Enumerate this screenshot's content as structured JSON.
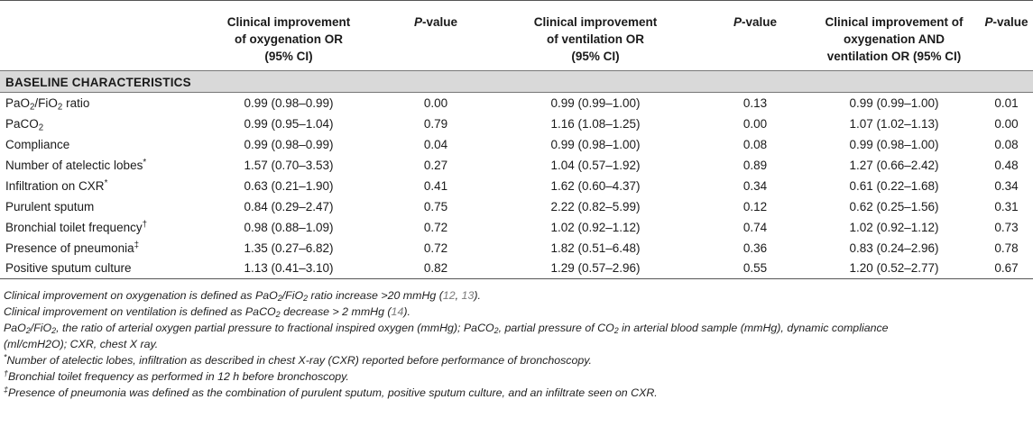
{
  "header": {
    "col1": "Clinical improvement of oxygenation OR (95% CI)",
    "col1_l1": "Clinical improvement",
    "col1_l2": "of oxygenation OR",
    "col1_l3": "(95% CI)",
    "pvalue_p": "P",
    "pvalue_rest": "-value",
    "col2_l1": "Clinical improvement",
    "col2_l2": "of ventilation OR",
    "col2_l3": "(95% CI)",
    "col3_l1": "Clinical improvement of",
    "col3_l2": "oxygenation AND",
    "col3_l3": "ventilation OR (95% CI)"
  },
  "section": "BASELINE CHARACTERISTICS",
  "rows": [
    {
      "label": "PaO2/FiO2 ratio",
      "or1": "0.99 (0.98–0.99)",
      "p1": "0.00",
      "or2": "0.99 (0.99–1.00)",
      "p2": "0.13",
      "or3": "0.99 (0.99–1.00)",
      "p3": "0.01"
    },
    {
      "label": "PaCO2",
      "or1": "0.99 (0.95–1.04)",
      "p1": "0.79",
      "or2": "1.16 (1.08–1.25)",
      "p2": "0.00",
      "or3": "1.07 (1.02–1.13)",
      "p3": "0.00"
    },
    {
      "label": "Compliance",
      "or1": "0.99 (0.98–0.99)",
      "p1": "0.04",
      "or2": "0.99 (0.98–1.00)",
      "p2": "0.08",
      "or3": "0.99 (0.98–1.00)",
      "p3": "0.08"
    },
    {
      "label": "Number of atelectic lobes*",
      "or1": "1.57 (0.70–3.53)",
      "p1": "0.27",
      "or2": "1.04 (0.57–1.92)",
      "p2": "0.89",
      "or3": "1.27 (0.66–2.42)",
      "p3": "0.48"
    },
    {
      "label": "Infiltration on CXR*",
      "or1": "0.63 (0.21–1.90)",
      "p1": "0.41",
      "or2": "1.62 (0.60–4.37)",
      "p2": "0.34",
      "or3": "0.61 (0.22–1.68)",
      "p3": "0.34"
    },
    {
      "label": "Purulent sputum",
      "or1": "0.84 (0.29–2.47)",
      "p1": "0.75",
      "or2": "2.22 (0.82–5.99)",
      "p2": "0.12",
      "or3": "0.62 (0.25–1.56)",
      "p3": "0.31"
    },
    {
      "label": "Bronchial toilet frequency†",
      "or1": "0.98 (0.88–1.09)",
      "p1": "0.72",
      "or2": "1.02 (0.92–1.12)",
      "p2": "0.74",
      "or3": "1.02 (0.92–1.12)",
      "p3": "0.73"
    },
    {
      "label": "Presence of pneumonia‡",
      "or1": "1.35 (0.27–6.82)",
      "p1": "0.72",
      "or2": "1.82 (0.51–6.48)",
      "p2": "0.36",
      "or3": "0.83 (0.24–2.96)",
      "p3": "0.78"
    },
    {
      "label": "Positive sputum culture",
      "or1": "1.13 (0.41–3.10)",
      "p1": "0.82",
      "or2": "1.29 (0.57–2.96)",
      "p2": "0.55",
      "or3": "1.20 (0.52–2.77)",
      "p3": "0.67"
    }
  ],
  "label_parts": {
    "pao2_pa": "PaO",
    "pao2_sub": "2",
    "pao2_fio": "/FiO",
    "pao2_sub2": "2",
    "pao2_rest": " ratio",
    "paco2_pa": "PaCO",
    "paco2_sub": "2",
    "atel_text": "Number of atelectic lobes",
    "atel_mark": "*",
    "infil_text": "Infiltration on CXR",
    "infil_mark": "*",
    "bronch_text": "Bronchial toilet frequency",
    "bronch_mark": "†",
    "pneu_text": "Presence of pneumonia",
    "pneu_mark": "‡"
  },
  "notes": {
    "n1_a": "Clinical improvement on oxygenation is defined as PaO",
    "n1_sub": "2",
    "n1_b": "/FiO",
    "n1_sub2": "2",
    "n1_c": " ratio increase >20 mmHg (",
    "n1_ref1": "12",
    "n1_sep": ", ",
    "n1_ref2": "13",
    "n1_end": ").",
    "n2_a": "Clinical improvement on ventilation is defined as PaCO",
    "n2_sub": "2",
    "n2_b": " decrease > 2 mmHg (",
    "n2_ref": "14",
    "n2_end": ").",
    "n3_a": "PaO",
    "n3_sub": "2",
    "n3_b": "/FiO",
    "n3_sub2": "2",
    "n3_c": ", the ratio of arterial oxygen partial pressure to fractional inspired oxygen (mmHg); PaCO",
    "n3_sub3": "2",
    "n3_d": ", partial pressure of CO",
    "n3_sub4": "2",
    "n3_e": " in arterial blood sample (mmHg), dynamic compliance",
    "n3_line2": "(ml/cmH2O); CXR, chest X ray.",
    "n4_mark": "*",
    "n4": "Number of atelectic lobes, infiltration as described in chest X-ray (CXR) reported before performance of bronchoscopy.",
    "n5_mark": "†",
    "n5": "Bronchial toilet frequency as performed in 12 h before bronchoscopy.",
    "n6_mark": "‡",
    "n6": "Presence of pneumonia was defined as the combination of purulent sputum, positive sputum culture, and an infiltrate seen on CXR."
  },
  "colors": {
    "section_bg": "#d9d9d9",
    "ref_link": "#7a7a7a",
    "rule": "#555555"
  }
}
